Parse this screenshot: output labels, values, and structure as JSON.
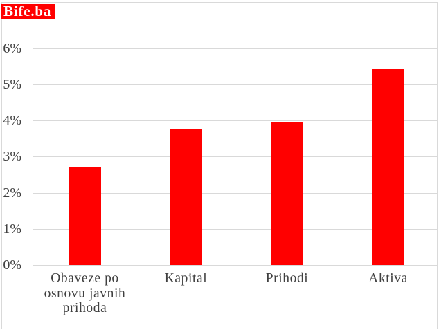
{
  "logo": {
    "text": "Bife.ba",
    "background_color": "#ff0000",
    "text_color": "#ffffff"
  },
  "chart_data": {
    "type": "bar",
    "categories": [
      "Obaveze po osnovu javnih prihoda",
      "Kapital",
      "Prihodi",
      "Aktiva"
    ],
    "values": [
      2.7,
      3.76,
      3.96,
      5.41
    ],
    "unit": "%",
    "ylim": [
      0,
      6
    ],
    "yticks": [
      0,
      1,
      2,
      3,
      4,
      5,
      6
    ],
    "ytick_labels": [
      "0%",
      "1%",
      "2%",
      "3%",
      "4%",
      "5%",
      "6%"
    ],
    "grid": true,
    "legend": false,
    "data_labels": false,
    "bar_color": "#ff0000",
    "gridline_color": "#d9d9d9",
    "axis_text_color": "#404040",
    "border_color": "#d9d9d9"
  }
}
